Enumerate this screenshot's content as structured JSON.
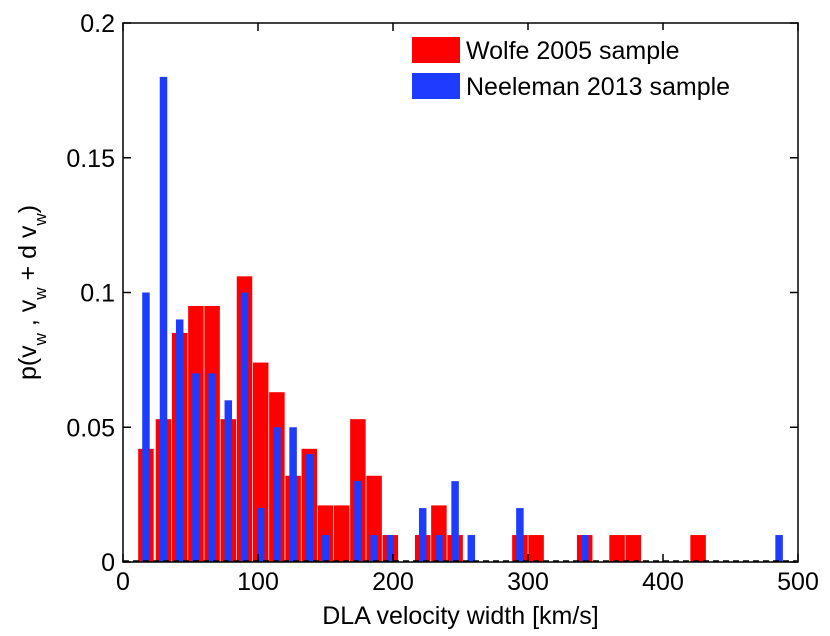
{
  "chart_data": {
    "type": "bar",
    "xlabel": "DLA velocity width  [km/s]",
    "ylabel": "p(v_w , v_w + d v_w)",
    "xlim": [
      0,
      500
    ],
    "ylim": [
      0,
      0.2
    ],
    "xticks": [
      "0",
      "100",
      "200",
      "300",
      "400",
      "500"
    ],
    "xtick_values": [
      0,
      100,
      200,
      300,
      400,
      500
    ],
    "yticks": [
      "0",
      "0.05",
      "0.1",
      "0.15",
      "0.2"
    ],
    "ytick_values": [
      0,
      0.05,
      0.1,
      0.15,
      0.2
    ],
    "legend_position": "top-right",
    "grid": false,
    "series": [
      {
        "name": "Wolfe 2005 sample",
        "color": "#ff0000",
        "x": [
          17,
          30,
          42,
          54,
          66,
          78,
          90,
          102,
          114,
          126,
          138,
          150,
          162,
          174,
          186,
          198,
          222,
          234,
          246,
          294,
          306,
          342,
          366,
          378,
          426
        ],
        "values": [
          0.042,
          0.053,
          0.085,
          0.095,
          0.095,
          0.053,
          0.106,
          0.074,
          0.063,
          0.032,
          0.042,
          0.021,
          0.021,
          0.053,
          0.032,
          0.01,
          0.01,
          0.021,
          0.01,
          0.01,
          0.01,
          0.01,
          0.01,
          0.01,
          0.01
        ]
      },
      {
        "name": "Neeleman 2013 sample",
        "color": "#1e3cff",
        "x": [
          17,
          30,
          42,
          54,
          66,
          78,
          90,
          102,
          114,
          126,
          138,
          150,
          174,
          186,
          198,
          222,
          234,
          246,
          258,
          294,
          342,
          486
        ],
        "values": [
          0.1,
          0.18,
          0.09,
          0.07,
          0.07,
          0.06,
          0.1,
          0.02,
          0.05,
          0.05,
          0.04,
          0.01,
          0.03,
          0.01,
          0.01,
          0.02,
          0.01,
          0.03,
          0.01,
          0.02,
          0.01,
          0.01
        ]
      }
    ]
  }
}
